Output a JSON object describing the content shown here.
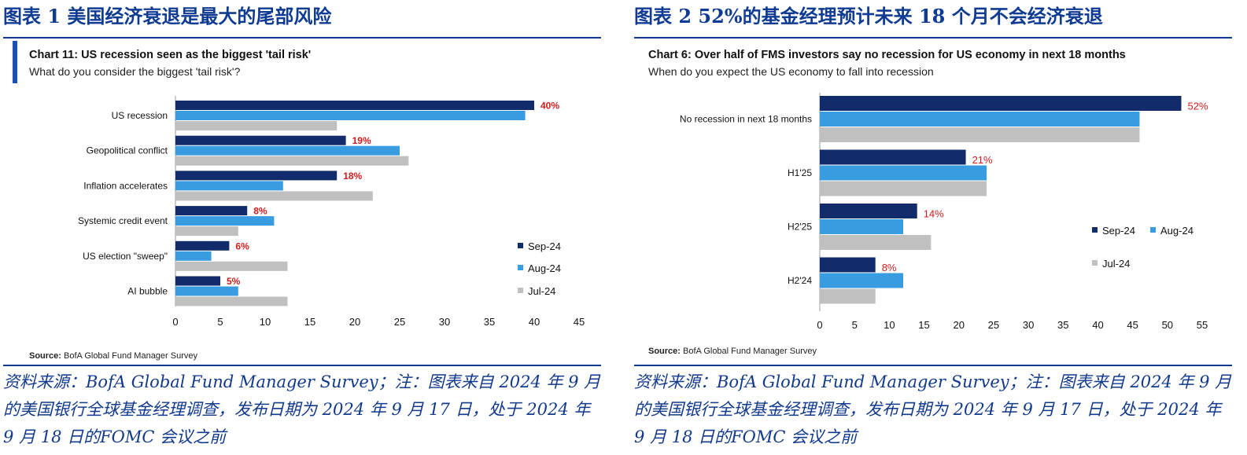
{
  "colors": {
    "heading_text": "#0f3b93",
    "heading_rule": "#0f3b93",
    "accent_bar": "#1a4fb8",
    "series_sep": "#112b6b",
    "series_aug": "#3a9ce0",
    "series_jul": "#c0c0c0",
    "value_label": "#d21c1c",
    "note_text": "#123a8c"
  },
  "panels": [
    {
      "figure_title": "图表 1  美国经济衰退是最大的尾部风险",
      "note": "资料来源：BofA Global Fund Manager Survey；注：图表来自 2024 年 9 月的美国银行全球基金经理调查，发布日期为 2024 年 9 月 17 日，处于 2024 年 9 月 18 日的FOMC 会议之前"
    },
    {
      "figure_title": "图表 2  52%的基金经理预计未来 18 个月不会经济衰退",
      "note": "资料来源：BofA Global Fund Manager Survey；注：图表来自 2024 年 9 月的美国银行全球基金经理调查，发布日期为 2024 年 9 月 17 日，处于 2024 年 9 月 18 日的FOMC 会议之前"
    }
  ],
  "chart_data": [
    {
      "type": "bar",
      "orientation": "horizontal",
      "title": "Chart 11: US recession seen as the biggest 'tail risk'",
      "subtitle": "What do you consider the biggest 'tail risk'?",
      "source": "BofA Global Fund Manager Survey",
      "source_label": "Source:",
      "categories": [
        "US recession",
        "Geopolitical conflict",
        "Inflation accelerates",
        "Systemic credit event",
        "US election \"sweep\"",
        "AI bubble"
      ],
      "series": [
        {
          "name": "Sep-24",
          "values": [
            40,
            19,
            18,
            8,
            6,
            5
          ]
        },
        {
          "name": "Aug-24",
          "values": [
            39,
            25,
            12,
            11,
            4,
            7
          ]
        },
        {
          "name": "Jul-24",
          "values": [
            18,
            26,
            22,
            7,
            12.5,
            12.5
          ]
        }
      ],
      "value_labels": [
        "40%",
        "19%",
        "18%",
        "8%",
        "6%",
        "5%"
      ],
      "xlim": [
        0,
        45
      ],
      "xticks": [
        0,
        5,
        10,
        15,
        20,
        25,
        30,
        35,
        40,
        45
      ],
      "grid": false,
      "legend_position": "right, vertical"
    },
    {
      "type": "bar",
      "orientation": "horizontal",
      "title": "Chart 6: Over half of FMS investors say no recession for US economy in next 18 months",
      "subtitle": "When do you expect the US economy to fall into recession",
      "source": "BofA Global Fund Manager Survey",
      "source_label": "Source:",
      "categories": [
        "No recession in next 18 months",
        "H1'25",
        "H2'25",
        "H2'24"
      ],
      "series": [
        {
          "name": "Sep-24",
          "values": [
            52,
            21,
            14,
            8
          ]
        },
        {
          "name": "Aug-24",
          "values": [
            46,
            24,
            12,
            12
          ]
        },
        {
          "name": "Jul-24",
          "values": [
            46,
            24,
            16,
            8
          ]
        }
      ],
      "value_labels": [
        "52%",
        "21%",
        "14%",
        "8%"
      ],
      "xlim": [
        0,
        55
      ],
      "xticks": [
        0,
        5,
        10,
        15,
        20,
        25,
        30,
        35,
        40,
        45,
        50,
        55
      ],
      "grid": false,
      "legend_position": "right, two columns"
    }
  ]
}
